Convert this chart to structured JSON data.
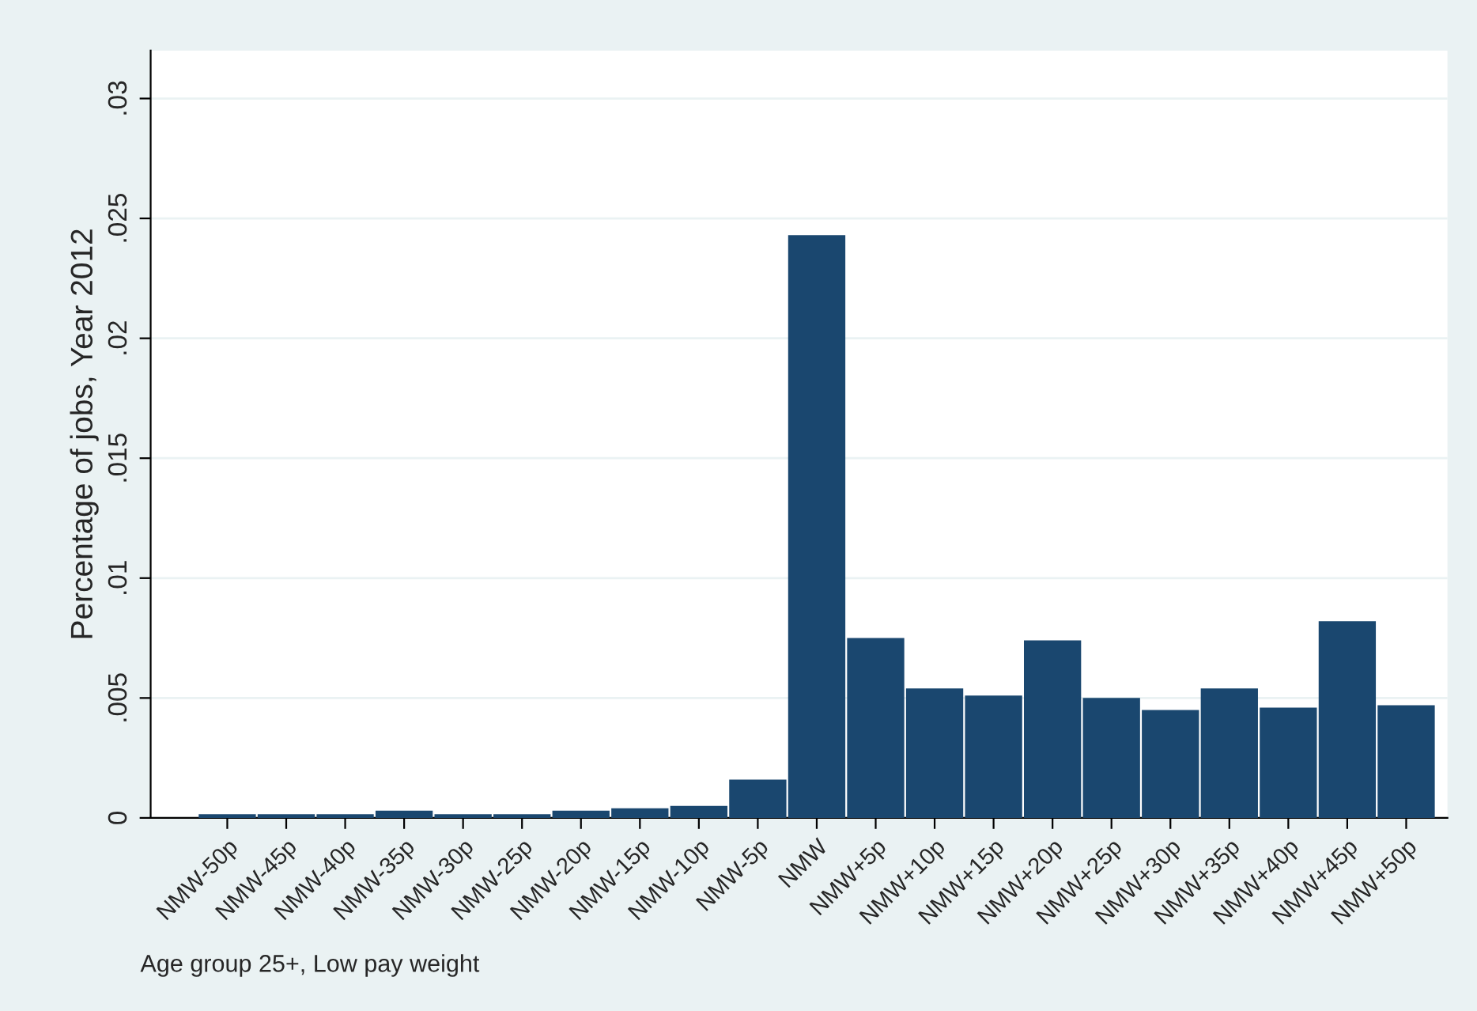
{
  "chart_data": {
    "type": "bar",
    "ylabel": "Percentage of jobs, Year 2012",
    "categories": [
      "NMW-50p",
      "NMW-45p",
      "NMW-40p",
      "NMW-35p",
      "NMW-30p",
      "NMW-25p",
      "NMW-20p",
      "NMW-15p",
      "NMW-10p",
      "NMW-5p",
      "NMW",
      "NMW+5p",
      "NMW+10p",
      "NMW+15p",
      "NMW+20p",
      "NMW+25p",
      "NMW+30p",
      "NMW+35p",
      "NMW+40p",
      "NMW+45p",
      "NMW+50p"
    ],
    "values": [
      0.00015,
      0.00015,
      0.00015,
      0.0003,
      0.00015,
      0.00015,
      0.0003,
      0.0004,
      0.0005,
      0.0016,
      0.0243,
      0.0075,
      0.0054,
      0.0051,
      0.0074,
      0.005,
      0.0045,
      0.0054,
      0.0046,
      0.0082,
      0.0047
    ],
    "color": "#1a476f",
    "ylim": [
      0,
      0.032
    ],
    "yticks": [
      {
        "value": 0,
        "label": "0"
      },
      {
        "value": 0.005,
        "label": ".005"
      },
      {
        "value": 0.01,
        "label": ".01"
      },
      {
        "value": 0.015,
        "label": ".015"
      },
      {
        "value": 0.02,
        "label": ".02"
      },
      {
        "value": 0.025,
        "label": ".025"
      },
      {
        "value": 0.03,
        "label": ".03"
      }
    ],
    "grid": "y",
    "annotations": [
      "Age group 25+, Low pay weight"
    ]
  }
}
